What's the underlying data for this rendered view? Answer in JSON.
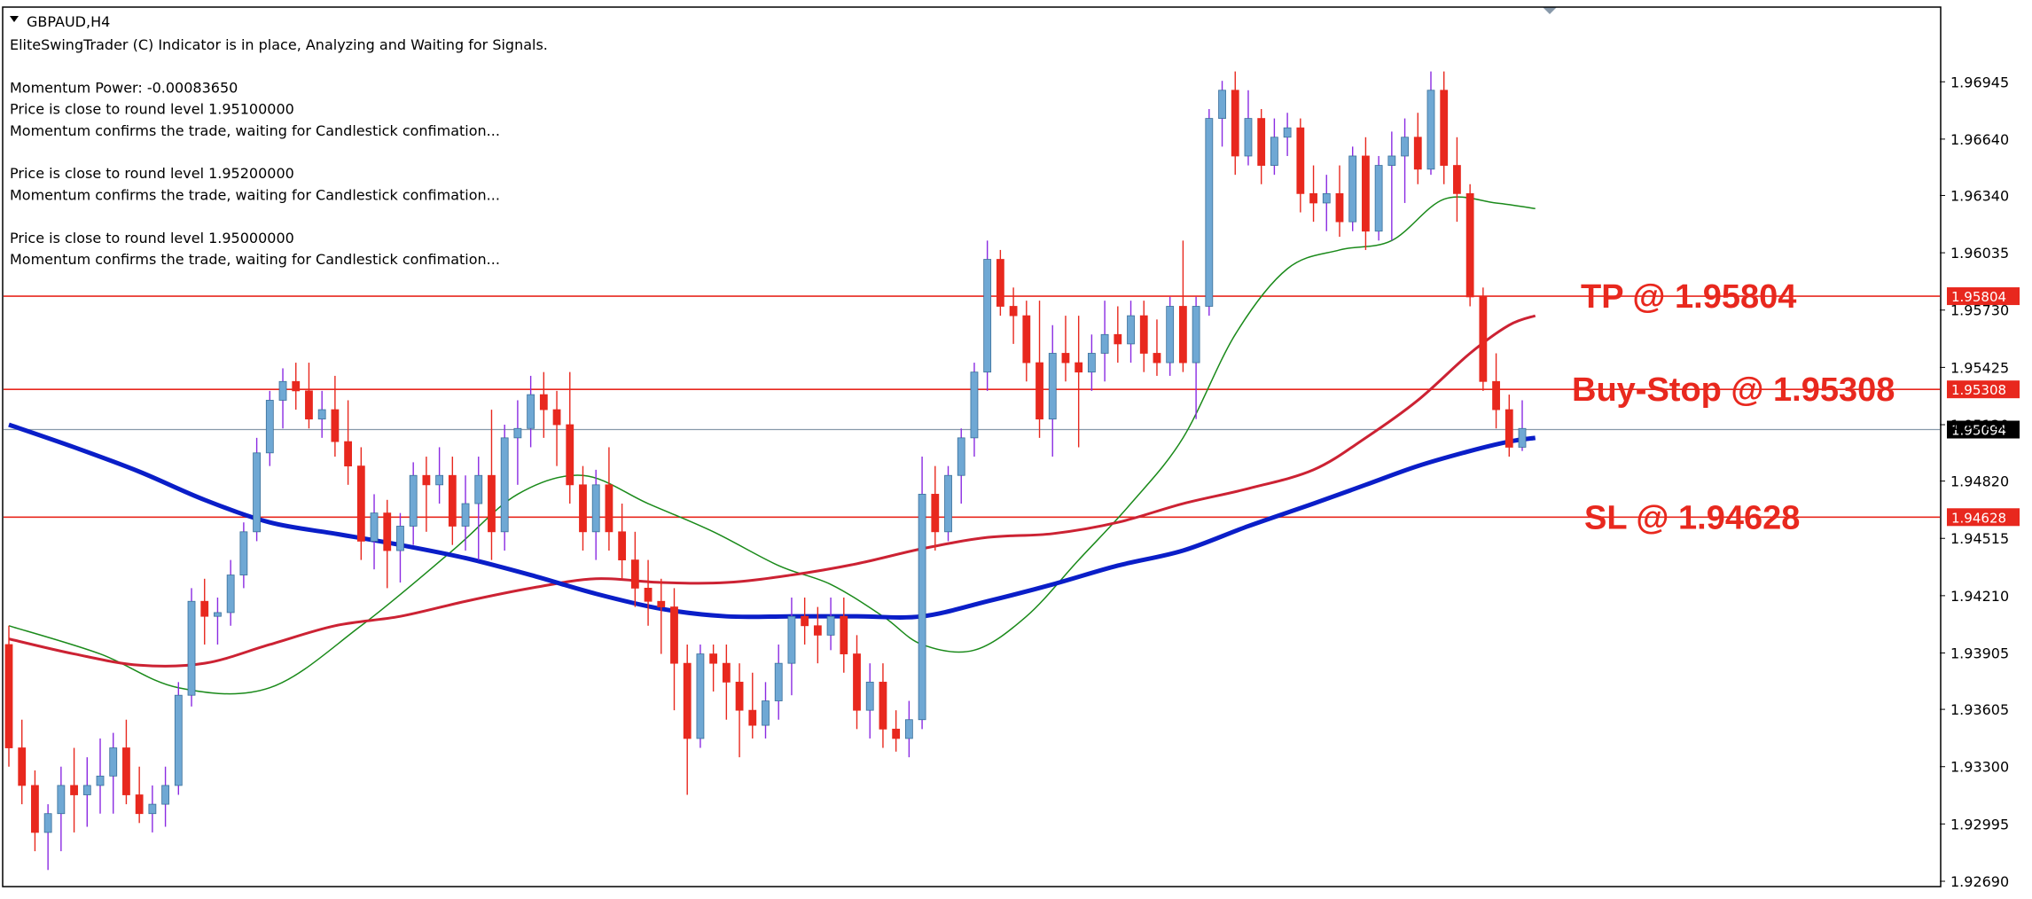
{
  "chart_data": {
    "type": "candlestick",
    "symbol": "GBPAUD,H4",
    "info_lines": [
      "EliteSwingTrader (C) Indicator is in place, Analyzing and Waiting for Signals.",
      "",
      "Momentum Power: -0.00083650",
      "Price is close to round level 1.95100000",
      "Momentum confirms the trade, waiting for Candlestick confimation...",
      "",
      "Price is close to round level 1.95200000",
      "Momentum confirms the trade, waiting for Candlestick confimation...",
      "",
      "Price is close to round level 1.95000000",
      "Momentum confirms the trade, waiting for Candlestick confimation..."
    ],
    "ylim": [
      1.9269,
      1.9705
    ],
    "y_ticks": [
      "1.96945",
      "1.96640",
      "1.96340",
      "1.96035",
      "1.95730",
      "1.95425",
      "1.95120",
      "1.94820",
      "1.94515",
      "1.94210",
      "1.93905",
      "1.93605",
      "1.93300",
      "1.92995",
      "1.92690"
    ],
    "levels": [
      {
        "name": "TP",
        "label": "TP @ 1.95804",
        "value": 1.95804,
        "tag": "1.95804",
        "color": "#e8281e"
      },
      {
        "name": "Buy-Stop",
        "label": "Buy-Stop @ 1.95308",
        "value": 1.95308,
        "tag": "1.95308",
        "color": "#e8281e"
      },
      {
        "name": "SL",
        "label": "SL @ 1.94628",
        "value": 1.94628,
        "tag": "1.94628",
        "color": "#e8281e"
      }
    ],
    "current_price": {
      "value": 1.95094,
      "tag": "1.95094"
    },
    "colors": {
      "bull": "#6fa8d4",
      "bear": "#e8281e",
      "wick_bull": "#8a2be2",
      "wick_bear": "#e8281e",
      "ma_fast": "#1a8a1a",
      "ma_mid": "#cc2233",
      "ma_slow": "#0a1ec8",
      "price_line": "#8899aa"
    },
    "candles": [
      [
        1.9395,
        1.9405,
        1.933,
        1.934
      ],
      [
        1.934,
        1.9355,
        1.931,
        1.932
      ],
      [
        1.932,
        1.9328,
        1.9285,
        1.9295
      ],
      [
        1.9295,
        1.931,
        1.9275,
        1.9305
      ],
      [
        1.9305,
        1.933,
        1.9285,
        1.932
      ],
      [
        1.932,
        1.934,
        1.9295,
        1.9315
      ],
      [
        1.9315,
        1.9335,
        1.9298,
        1.932
      ],
      [
        1.932,
        1.9345,
        1.9305,
        1.9325
      ],
      [
        1.9325,
        1.9348,
        1.9305,
        1.934
      ],
      [
        1.934,
        1.9355,
        1.931,
        1.9315
      ],
      [
        1.9315,
        1.933,
        1.93,
        1.9305
      ],
      [
        1.9305,
        1.932,
        1.9295,
        1.931
      ],
      [
        1.931,
        1.933,
        1.9298,
        1.932
      ],
      [
        1.932,
        1.9375,
        1.9315,
        1.9368
      ],
      [
        1.9368,
        1.9425,
        1.9362,
        1.9418
      ],
      [
        1.9418,
        1.943,
        1.9395,
        1.941
      ],
      [
        1.941,
        1.942,
        1.9395,
        1.9412
      ],
      [
        1.9412,
        1.944,
        1.9405,
        1.9432
      ],
      [
        1.9432,
        1.946,
        1.9425,
        1.9455
      ],
      [
        1.9455,
        1.9505,
        1.945,
        1.9497
      ],
      [
        1.9497,
        1.953,
        1.949,
        1.9525
      ],
      [
        1.9525,
        1.9542,
        1.951,
        1.9535
      ],
      [
        1.9535,
        1.9545,
        1.952,
        1.953
      ],
      [
        1.953,
        1.9545,
        1.951,
        1.9515
      ],
      [
        1.9515,
        1.953,
        1.9505,
        1.952
      ],
      [
        1.952,
        1.9538,
        1.9495,
        1.9503
      ],
      [
        1.9503,
        1.9525,
        1.948,
        1.949
      ],
      [
        1.949,
        1.95,
        1.944,
        1.945
      ],
      [
        1.945,
        1.9475,
        1.9435,
        1.9465
      ],
      [
        1.9465,
        1.9472,
        1.9425,
        1.9445
      ],
      [
        1.9445,
        1.9465,
        1.9428,
        1.9458
      ],
      [
        1.9458,
        1.9492,
        1.9448,
        1.9485
      ],
      [
        1.9485,
        1.9495,
        1.9455,
        1.948
      ],
      [
        1.948,
        1.95,
        1.947,
        1.9485
      ],
      [
        1.9485,
        1.9495,
        1.9448,
        1.9458
      ],
      [
        1.9458,
        1.9485,
        1.9445,
        1.947
      ],
      [
        1.947,
        1.9495,
        1.944,
        1.9485
      ],
      [
        1.9485,
        1.952,
        1.944,
        1.9455
      ],
      [
        1.9455,
        1.9512,
        1.9445,
        1.9505
      ],
      [
        1.9505,
        1.9525,
        1.948,
        1.951
      ],
      [
        1.951,
        1.9538,
        1.95,
        1.9528
      ],
      [
        1.9528,
        1.954,
        1.9505,
        1.952
      ],
      [
        1.952,
        1.953,
        1.949,
        1.9512
      ],
      [
        1.9512,
        1.954,
        1.947,
        1.948
      ],
      [
        1.948,
        1.949,
        1.9445,
        1.9455
      ],
      [
        1.9455,
        1.9488,
        1.944,
        1.948
      ],
      [
        1.948,
        1.95,
        1.9445,
        1.9455
      ],
      [
        1.9455,
        1.947,
        1.943,
        1.944
      ],
      [
        1.944,
        1.9455,
        1.9415,
        1.9425
      ],
      [
        1.9425,
        1.944,
        1.9405,
        1.9418
      ],
      [
        1.9418,
        1.943,
        1.939,
        1.9415
      ],
      [
        1.9415,
        1.9425,
        1.936,
        1.9385
      ],
      [
        1.9385,
        1.9395,
        1.9315,
        1.9345
      ],
      [
        1.9345,
        1.9395,
        1.934,
        1.939
      ],
      [
        1.939,
        1.9395,
        1.937,
        1.9385
      ],
      [
        1.9385,
        1.9395,
        1.9355,
        1.9375
      ],
      [
        1.9375,
        1.9385,
        1.9335,
        1.936
      ],
      [
        1.936,
        1.938,
        1.9345,
        1.9352
      ],
      [
        1.9352,
        1.9375,
        1.9345,
        1.9365
      ],
      [
        1.9365,
        1.9395,
        1.9355,
        1.9385
      ],
      [
        1.9385,
        1.942,
        1.9368,
        1.941
      ],
      [
        1.941,
        1.942,
        1.9395,
        1.9405
      ],
      [
        1.9405,
        1.9415,
        1.9385,
        1.94
      ],
      [
        1.94,
        1.942,
        1.9392,
        1.941
      ],
      [
        1.941,
        1.942,
        1.938,
        1.939
      ],
      [
        1.939,
        1.94,
        1.935,
        1.936
      ],
      [
        1.936,
        1.9385,
        1.9345,
        1.9375
      ],
      [
        1.9375,
        1.9385,
        1.934,
        1.935
      ],
      [
        1.935,
        1.936,
        1.9338,
        1.9345
      ],
      [
        1.9345,
        1.9365,
        1.9335,
        1.9355
      ],
      [
        1.9355,
        1.9495,
        1.935,
        1.9475
      ],
      [
        1.9475,
        1.949,
        1.9445,
        1.9455
      ],
      [
        1.9455,
        1.949,
        1.945,
        1.9485
      ],
      [
        1.9485,
        1.951,
        1.947,
        1.9505
      ],
      [
        1.9505,
        1.9545,
        1.9495,
        1.954
      ],
      [
        1.954,
        1.961,
        1.953,
        1.96
      ],
      [
        1.96,
        1.9605,
        1.957,
        1.9575
      ],
      [
        1.9575,
        1.9585,
        1.9555,
        1.957
      ],
      [
        1.957,
        1.9578,
        1.9535,
        1.9545
      ],
      [
        1.9545,
        1.9578,
        1.9505,
        1.9515
      ],
      [
        1.9515,
        1.9565,
        1.9495,
        1.955
      ],
      [
        1.955,
        1.957,
        1.9535,
        1.9545
      ],
      [
        1.9545,
        1.957,
        1.95,
        1.954
      ],
      [
        1.954,
        1.956,
        1.953,
        1.955
      ],
      [
        1.955,
        1.9578,
        1.9535,
        1.956
      ],
      [
        1.956,
        1.9575,
        1.9545,
        1.9555
      ],
      [
        1.9555,
        1.9578,
        1.9545,
        1.957
      ],
      [
        1.957,
        1.9578,
        1.954,
        1.955
      ],
      [
        1.955,
        1.9568,
        1.9538,
        1.9545
      ],
      [
        1.9545,
        1.958,
        1.9538,
        1.9575
      ],
      [
        1.9575,
        1.961,
        1.954,
        1.9545
      ],
      [
        1.9545,
        1.958,
        1.9515,
        1.9575
      ],
      [
        1.9575,
        1.968,
        1.957,
        1.9675
      ],
      [
        1.9675,
        1.9695,
        1.966,
        1.969
      ],
      [
        1.969,
        1.97,
        1.9645,
        1.9655
      ],
      [
        1.9655,
        1.969,
        1.965,
        1.9675
      ],
      [
        1.9675,
        1.968,
        1.964,
        1.965
      ],
      [
        1.965,
        1.9675,
        1.9645,
        1.9665
      ],
      [
        1.9665,
        1.9678,
        1.9655,
        1.967
      ],
      [
        1.967,
        1.9675,
        1.9625,
        1.9635
      ],
      [
        1.9635,
        1.965,
        1.962,
        1.963
      ],
      [
        1.963,
        1.9645,
        1.9615,
        1.9635
      ],
      [
        1.9635,
        1.965,
        1.9612,
        1.962
      ],
      [
        1.962,
        1.966,
        1.9615,
        1.9655
      ],
      [
        1.9655,
        1.9665,
        1.9605,
        1.9615
      ],
      [
        1.9615,
        1.9655,
        1.961,
        1.965
      ],
      [
        1.965,
        1.9668,
        1.961,
        1.9655
      ],
      [
        1.9655,
        1.9675,
        1.963,
        1.9665
      ],
      [
        1.9665,
        1.9678,
        1.964,
        1.9648
      ],
      [
        1.9648,
        1.97,
        1.9645,
        1.969
      ],
      [
        1.969,
        1.97,
        1.964,
        1.965
      ],
      [
        1.965,
        1.9665,
        1.962,
        1.9635
      ],
      [
        1.9635,
        1.964,
        1.9575,
        1.958
      ],
      [
        1.958,
        1.9585,
        1.953,
        1.9535
      ],
      [
        1.9535,
        1.955,
        1.951,
        1.952
      ],
      [
        1.952,
        1.9528,
        1.9495,
        1.95
      ],
      [
        1.95,
        1.9525,
        1.9498,
        1.951
      ]
    ],
    "ma_fast": [
      [
        0,
        1.9405
      ],
      [
        7,
        1.939
      ],
      [
        13,
        1.9372
      ],
      [
        20,
        1.9372
      ],
      [
        27,
        1.9405
      ],
      [
        34,
        1.9445
      ],
      [
        39,
        1.9475
      ],
      [
        44,
        1.9485
      ],
      [
        49,
        1.947
      ],
      [
        54,
        1.9455
      ],
      [
        59,
        1.9437
      ],
      [
        63,
        1.9427
      ],
      [
        67,
        1.941
      ],
      [
        70,
        1.9395
      ],
      [
        74,
        1.9392
      ],
      [
        78,
        1.941
      ],
      [
        82,
        1.944
      ],
      [
        86,
        1.947
      ],
      [
        90,
        1.9505
      ],
      [
        94,
        1.956
      ],
      [
        98,
        1.9595
      ],
      [
        102,
        1.9605
      ],
      [
        106,
        1.961
      ],
      [
        110,
        1.9632
      ],
      [
        114,
        1.963
      ],
      [
        117,
        1.9627
      ]
    ],
    "ma_mid": [
      [
        0,
        1.9398
      ],
      [
        5,
        1.939
      ],
      [
        10,
        1.9384
      ],
      [
        15,
        1.9385
      ],
      [
        20,
        1.9395
      ],
      [
        25,
        1.9405
      ],
      [
        30,
        1.941
      ],
      [
        35,
        1.9418
      ],
      [
        40,
        1.9425
      ],
      [
        45,
        1.943
      ],
      [
        50,
        1.9428
      ],
      [
        55,
        1.9428
      ],
      [
        60,
        1.9432
      ],
      [
        65,
        1.9438
      ],
      [
        70,
        1.9446
      ],
      [
        75,
        1.9452
      ],
      [
        80,
        1.9454
      ],
      [
        85,
        1.946
      ],
      [
        90,
        1.947
      ],
      [
        95,
        1.9478
      ],
      [
        100,
        1.9488
      ],
      [
        104,
        1.9505
      ],
      [
        108,
        1.9525
      ],
      [
        112,
        1.955
      ],
      [
        115,
        1.9565
      ],
      [
        117,
        1.957
      ]
    ],
    "ma_slow": [
      [
        0,
        1.9512
      ],
      [
        5,
        1.95
      ],
      [
        10,
        1.9487
      ],
      [
        15,
        1.9472
      ],
      [
        20,
        1.946
      ],
      [
        25,
        1.9454
      ],
      [
        30,
        1.9448
      ],
      [
        35,
        1.9441
      ],
      [
        40,
        1.9432
      ],
      [
        45,
        1.9422
      ],
      [
        50,
        1.9414
      ],
      [
        55,
        1.941
      ],
      [
        60,
        1.941
      ],
      [
        65,
        1.941
      ],
      [
        70,
        1.941
      ],
      [
        75,
        1.9418
      ],
      [
        80,
        1.9427
      ],
      [
        85,
        1.9437
      ],
      [
        90,
        1.9445
      ],
      [
        95,
        1.9458
      ],
      [
        100,
        1.947
      ],
      [
        104,
        1.948
      ],
      [
        108,
        1.949
      ],
      [
        112,
        1.9498
      ],
      [
        115,
        1.9503
      ],
      [
        117,
        1.9505
      ]
    ]
  }
}
